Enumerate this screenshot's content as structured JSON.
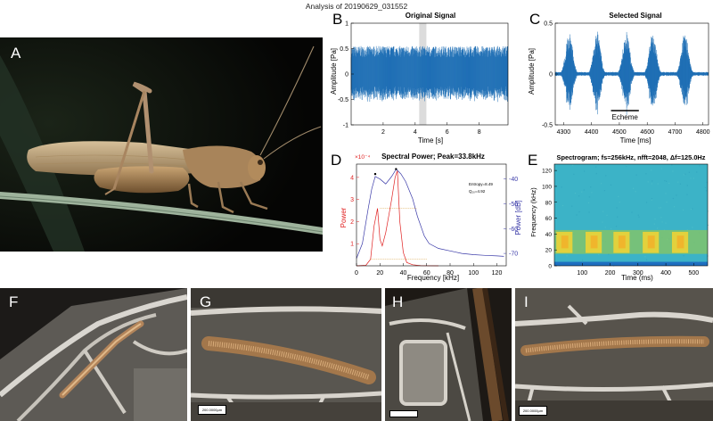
{
  "figure_title": "Analysis of 20190629_031552",
  "panels": {
    "A": {
      "letter": "A"
    },
    "B": {
      "letter": "B"
    },
    "C": {
      "letter": "C"
    },
    "D": {
      "letter": "D"
    },
    "E": {
      "letter": "E"
    },
    "F": {
      "letter": "F"
    },
    "G": {
      "letter": "G"
    },
    "H": {
      "letter": "H"
    },
    "I": {
      "letter": "I"
    }
  },
  "scale_bars": {
    "G": "200.0000μm",
    "H": "",
    "I": "200.0000μm"
  },
  "colors": {
    "signal": "#1f6fb5",
    "power_red": "#e02020",
    "power_blue": "#3a3aa8",
    "spec_bg": "#3cb3c7",
    "spec_band": "#e8d23a"
  },
  "chart_data": [
    {
      "id": "B",
      "type": "line",
      "title": "Original Signal",
      "xlabel": "Time [s]",
      "ylabel": "Amplitude [Pa]",
      "xlim": [
        0,
        9.8
      ],
      "ylim": [
        -1,
        1
      ],
      "xticks": [
        "2",
        "4",
        "6",
        "8"
      ],
      "yticks": [
        "-1",
        "-0.5",
        "0",
        "0.5",
        "1"
      ],
      "highlight_x": [
        4.25,
        4.7
      ],
      "envelope": 0.55
    },
    {
      "id": "C",
      "type": "line",
      "title": "Selected Signal",
      "xlabel": "Time [ms]",
      "ylabel": "Amplitude [Pa]",
      "xlim": [
        4270,
        4820
      ],
      "ylim": [
        -0.5,
        0.5
      ],
      "xticks": [
        "4300",
        "4400",
        "4500",
        "4600",
        "4700",
        "4800"
      ],
      "yticks": [
        "-0.5",
        "0",
        "0.5"
      ],
      "burst_centers": [
        4320,
        4420,
        4525,
        4620,
        4735
      ],
      "annotation": "Echeme"
    },
    {
      "id": "D",
      "type": "line",
      "title": "Spectral Power; Peak=33.8kHz",
      "xlabel": "Frequency [kHz]",
      "ylabel_left": "Power",
      "ylabel_right": "Power [dB]",
      "y_exponent": "×10⁻⁴",
      "xlim": [
        0,
        128
      ],
      "xticks": [
        "0",
        "20",
        "40",
        "60",
        "80",
        "100",
        "120"
      ],
      "yticks_left": [
        "1",
        "2",
        "3",
        "4"
      ],
      "yticks_right": [
        "-40",
        "-50",
        "-60",
        "-70"
      ],
      "annotation_entropy": "Entropy=8.49",
      "annotation_q": "Q₁₀=4.92",
      "series": [
        {
          "name": "Power",
          "x": [
            0,
            8,
            12,
            15,
            18,
            20,
            22,
            25,
            28,
            30,
            33,
            35,
            37,
            40,
            43,
            48,
            55,
            70
          ],
          "y": [
            0,
            0.02,
            0.3,
            1.8,
            2.6,
            1.2,
            0.9,
            1.5,
            2.4,
            3.0,
            4.0,
            4.3,
            2.0,
            0.6,
            0.15,
            0.05,
            0.01,
            0
          ]
        },
        {
          "name": "Power [dB]",
          "x": [
            0,
            5,
            10,
            13,
            16,
            20,
            25,
            30,
            34,
            38,
            42,
            48,
            52,
            58,
            62,
            70,
            80,
            90,
            100,
            110,
            120,
            126
          ],
          "y": [
            -72,
            -66,
            -52,
            -44,
            -39,
            -40,
            -42,
            -39,
            -36,
            -38,
            -41,
            -48,
            -55,
            -63,
            -66,
            -68,
            -69,
            -70,
            -70.5,
            -70.8,
            -71,
            -71.2
          ]
        }
      ]
    },
    {
      "id": "E",
      "type": "heatmap",
      "title": "Spectrogram; fs=256kHz, nfft=2048, Δf=125.0Hz",
      "xlabel": "Time (ms)",
      "ylabel": "Frequency (kHz)",
      "xlim": [
        0,
        550
      ],
      "ylim": [
        0,
        128
      ],
      "xticks": [
        "100",
        "200",
        "300",
        "400",
        "500"
      ],
      "yticks": [
        "0",
        "20",
        "40",
        "60",
        "80",
        "100",
        "120"
      ],
      "band_khz": [
        15,
        45
      ],
      "burst_ms": [
        45,
        150,
        250,
        355,
        460
      ]
    }
  ]
}
